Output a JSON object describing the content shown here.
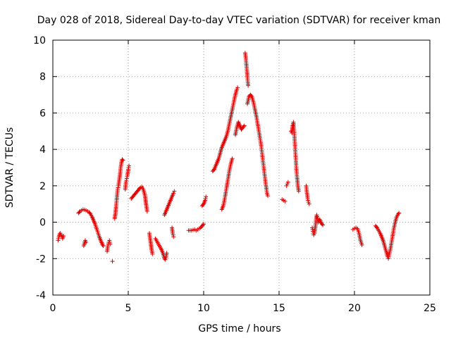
{
  "chart_data": {
    "type": "scatter",
    "title": "Day 028 of 2018, Sidereal Day-to-day VTEC variation (SDTVAR) for receiver kman",
    "xlabel": "GPS time / hours",
    "ylabel": "SDTVAR / TECUs",
    "xlim": [
      0,
      25
    ],
    "ylim": [
      -4,
      10
    ],
    "xticks": [
      0,
      5,
      10,
      15,
      20,
      25
    ],
    "yticks": [
      -4,
      -2,
      0,
      2,
      4,
      6,
      8,
      10
    ],
    "xtick_labels": [
      "0",
      "5",
      "10",
      "15",
      "20",
      "25"
    ],
    "ytick_labels": [
      "-4",
      "-2",
      "0",
      "2",
      "4",
      "6",
      "8",
      "10"
    ],
    "grid": true,
    "marker": "+",
    "color": "#e00000",
    "series": [
      {
        "name": "SDTVAR",
        "segments": [
          [
            [
              0.35,
              -1.0
            ],
            [
              0.4,
              -0.8
            ],
            [
              0.45,
              -0.65
            ],
            [
              0.5,
              -0.6
            ],
            [
              0.55,
              -0.7
            ],
            [
              0.6,
              -0.8
            ],
            [
              0.65,
              -0.9
            ],
            [
              0.7,
              -0.75
            ]
          ],
          [
            [
              1.7,
              0.5
            ],
            [
              1.8,
              0.6
            ],
            [
              1.9,
              0.65
            ],
            [
              2.0,
              0.7
            ],
            [
              2.1,
              0.68
            ],
            [
              2.2,
              0.65
            ],
            [
              2.3,
              0.6
            ],
            [
              2.4,
              0.55
            ],
            [
              2.5,
              0.45
            ],
            [
              2.6,
              0.3
            ],
            [
              2.7,
              0.1
            ],
            [
              2.8,
              -0.1
            ],
            [
              2.9,
              -0.35
            ],
            [
              3.0,
              -0.6
            ],
            [
              3.1,
              -0.85
            ],
            [
              3.2,
              -1.05
            ],
            [
              3.3,
              -1.25
            ],
            [
              3.35,
              -1.3
            ]
          ],
          [
            [
              2.05,
              -1.3
            ],
            [
              2.1,
              -1.15
            ],
            [
              2.15,
              -1.0
            ],
            [
              2.2,
              -1.1
            ]
          ],
          [
            [
              3.6,
              -1.6
            ],
            [
              3.65,
              -1.3
            ],
            [
              3.7,
              -1.1
            ],
            [
              3.75,
              -1.0
            ],
            [
              3.8,
              -1.2
            ]
          ],
          [
            [
              3.95,
              -2.15
            ]
          ],
          [
            [
              4.1,
              0.2
            ],
            [
              4.15,
              0.5
            ],
            [
              4.2,
              0.9
            ],
            [
              4.25,
              1.4
            ],
            [
              4.3,
              1.8
            ],
            [
              4.35,
              2.0
            ],
            [
              4.4,
              2.3
            ],
            [
              4.45,
              2.6
            ],
            [
              4.5,
              3.0
            ],
            [
              4.55,
              3.3
            ],
            [
              4.6,
              3.45
            ],
            [
              4.65,
              3.4
            ]
          ],
          [
            [
              4.8,
              1.8
            ],
            [
              4.85,
              2.2
            ],
            [
              4.9,
              2.4
            ],
            [
              4.95,
              2.6
            ],
            [
              5.0,
              2.9
            ],
            [
              5.05,
              3.1
            ]
          ],
          [
            [
              5.2,
              1.3
            ],
            [
              5.3,
              1.4
            ],
            [
              5.4,
              1.5
            ],
            [
              5.5,
              1.6
            ],
            [
              5.6,
              1.7
            ],
            [
              5.7,
              1.8
            ],
            [
              5.8,
              1.9
            ],
            [
              5.9,
              1.95
            ],
            [
              6.0,
              1.8
            ],
            [
              6.1,
              1.5
            ],
            [
              6.15,
              1.2
            ],
            [
              6.2,
              0.9
            ],
            [
              6.25,
              0.6
            ]
          ],
          [
            [
              6.4,
              -0.6
            ],
            [
              6.45,
              -0.9
            ],
            [
              6.5,
              -1.2
            ],
            [
              6.55,
              -1.5
            ],
            [
              6.6,
              -1.75
            ]
          ],
          [
            [
              6.8,
              -0.9
            ],
            [
              6.9,
              -1.05
            ],
            [
              7.0,
              -1.2
            ],
            [
              7.1,
              -1.35
            ],
            [
              7.2,
              -1.5
            ],
            [
              7.3,
              -1.7
            ],
            [
              7.35,
              -1.85
            ],
            [
              7.4,
              -2.0
            ],
            [
              7.45,
              -2.05
            ],
            [
              7.5,
              -1.95
            ],
            [
              7.55,
              -1.7
            ]
          ],
          [
            [
              7.4,
              0.4
            ],
            [
              7.5,
              0.6
            ],
            [
              7.6,
              0.8
            ],
            [
              7.7,
              1.0
            ],
            [
              7.8,
              1.2
            ],
            [
              7.9,
              1.4
            ],
            [
              8.0,
              1.6
            ],
            [
              8.05,
              1.7
            ]
          ],
          [
            [
              7.9,
              -0.3
            ],
            [
              7.95,
              -0.6
            ],
            [
              8.0,
              -0.8
            ]
          ],
          [
            [
              9.0,
              -0.45
            ],
            [
              9.2,
              -0.45
            ],
            [
              9.4,
              -0.4
            ],
            [
              9.5,
              -0.45
            ],
            [
              9.6,
              -0.4
            ],
            [
              9.7,
              -0.35
            ],
            [
              9.8,
              -0.3
            ],
            [
              9.9,
              -0.2
            ],
            [
              10.0,
              -0.1
            ]
          ],
          [
            [
              9.9,
              0.9
            ],
            [
              10.0,
              1.0
            ],
            [
              10.1,
              1.2
            ],
            [
              10.15,
              1.4
            ]
          ],
          [
            [
              10.6,
              2.8
            ],
            [
              10.7,
              2.9
            ],
            [
              10.8,
              3.1
            ],
            [
              10.9,
              3.3
            ],
            [
              11.0,
              3.5
            ],
            [
              11.1,
              3.8
            ],
            [
              11.2,
              4.1
            ],
            [
              11.3,
              4.3
            ],
            [
              11.4,
              4.5
            ],
            [
              11.5,
              4.7
            ],
            [
              11.6,
              5.0
            ],
            [
              11.7,
              5.4
            ],
            [
              11.8,
              5.8
            ],
            [
              11.9,
              6.2
            ],
            [
              12.0,
              6.6
            ],
            [
              12.1,
              7.0
            ],
            [
              12.2,
              7.3
            ],
            [
              12.25,
              7.4
            ]
          ],
          [
            [
              11.2,
              0.7
            ],
            [
              11.3,
              0.9
            ],
            [
              11.4,
              1.3
            ],
            [
              11.5,
              1.8
            ],
            [
              11.6,
              2.3
            ],
            [
              11.7,
              2.8
            ],
            [
              11.8,
              3.2
            ],
            [
              11.9,
              3.5
            ]
          ],
          [
            [
              12.1,
              4.8
            ],
            [
              12.2,
              5.2
            ],
            [
              12.3,
              5.5
            ],
            [
              12.4,
              5.3
            ],
            [
              12.5,
              5.1
            ],
            [
              12.6,
              5.2
            ],
            [
              12.7,
              5.3
            ]
          ],
          [
            [
              12.75,
              9.3
            ],
            [
              12.8,
              9.0
            ],
            [
              12.85,
              8.5
            ],
            [
              12.9,
              8.0
            ],
            [
              12.95,
              7.5
            ]
          ],
          [
            [
              12.9,
              6.5
            ],
            [
              13.0,
              6.9
            ],
            [
              13.1,
              7.0
            ],
            [
              13.2,
              6.9
            ],
            [
              13.3,
              6.6
            ],
            [
              13.4,
              6.2
            ],
            [
              13.5,
              5.8
            ],
            [
              13.6,
              5.3
            ],
            [
              13.7,
              4.8
            ],
            [
              13.8,
              4.3
            ],
            [
              13.9,
              3.6
            ],
            [
              14.0,
              2.9
            ],
            [
              14.1,
              2.2
            ],
            [
              14.2,
              1.6
            ],
            [
              14.25,
              1.45
            ]
          ],
          [
            [
              15.2,
              1.25
            ],
            [
              15.3,
              1.2
            ],
            [
              15.4,
              1.15
            ]
          ],
          [
            [
              15.5,
              2.0
            ],
            [
              15.55,
              2.1
            ],
            [
              15.6,
              2.2
            ]
          ],
          [
            [
              15.8,
              5.0
            ],
            [
              15.85,
              4.9
            ],
            [
              15.9,
              5.3
            ],
            [
              15.95,
              5.5
            ],
            [
              16.0,
              5.0
            ],
            [
              16.05,
              4.3
            ],
            [
              16.1,
              3.6
            ],
            [
              16.15,
              2.9
            ],
            [
              16.2,
              2.4
            ],
            [
              16.25,
              2.0
            ],
            [
              16.3,
              1.7
            ]
          ],
          [
            [
              16.8,
              2.0
            ],
            [
              16.85,
              1.6
            ],
            [
              16.9,
              1.3
            ],
            [
              16.95,
              1.1
            ],
            [
              17.0,
              1.0
            ]
          ],
          [
            [
              17.2,
              -0.3
            ],
            [
              17.25,
              -0.5
            ],
            [
              17.3,
              -0.7
            ],
            [
              17.35,
              -0.6
            ],
            [
              17.4,
              -0.3
            ],
            [
              17.45,
              0.1
            ],
            [
              17.5,
              0.4
            ],
            [
              17.55,
              0.2
            ],
            [
              17.6,
              0.0
            ],
            [
              17.7,
              0.15
            ],
            [
              17.8,
              -0.05
            ],
            [
              17.9,
              -0.15
            ]
          ],
          [
            [
              19.9,
              -0.4
            ],
            [
              20.0,
              -0.35
            ],
            [
              20.1,
              -0.3
            ],
            [
              20.2,
              -0.35
            ],
            [
              20.3,
              -0.6
            ],
            [
              20.4,
              -1.0
            ],
            [
              20.5,
              -1.25
            ]
          ],
          [
            [
              21.4,
              -0.2
            ],
            [
              21.5,
              -0.3
            ],
            [
              21.6,
              -0.45
            ],
            [
              21.7,
              -0.6
            ],
            [
              21.8,
              -0.8
            ],
            [
              21.9,
              -1.0
            ],
            [
              22.0,
              -1.3
            ],
            [
              22.1,
              -1.6
            ],
            [
              22.2,
              -1.9
            ],
            [
              22.25,
              -2.0
            ],
            [
              22.3,
              -1.8
            ],
            [
              22.4,
              -1.4
            ],
            [
              22.5,
              -0.9
            ],
            [
              22.6,
              -0.4
            ],
            [
              22.7,
              0.0
            ],
            [
              22.8,
              0.3
            ],
            [
              22.9,
              0.45
            ],
            [
              22.95,
              0.5
            ]
          ]
        ]
      }
    ]
  }
}
